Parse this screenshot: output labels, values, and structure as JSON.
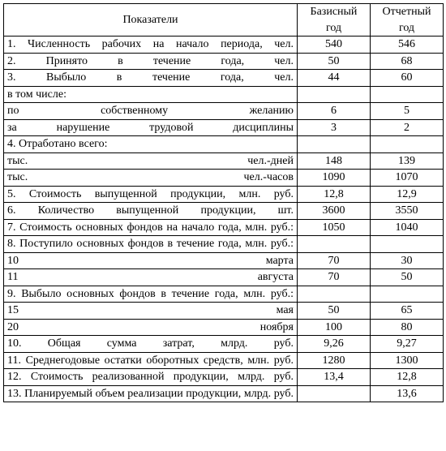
{
  "columns": {
    "indicator": "Показатели",
    "base_top": "Базисный",
    "base_bot": "год",
    "report_top": "Отчетный",
    "report_bot": "год"
  },
  "rows": [
    {
      "label": "1. Численность рабочих на начало периода, чел.",
      "base": "540",
      "report": "546"
    },
    {
      "label": "2. Принято в течение года, чел.",
      "base": "50",
      "report": "68"
    },
    {
      "label": "3. Выбыло в течение года, чел.",
      "base": "44",
      "report": "60"
    },
    {
      "label": "в том числе:",
      "base": "",
      "report": "",
      "nopad": true
    },
    {
      "label": "по собственному желанию",
      "base": "6",
      "report": "5"
    },
    {
      "label": "за нарушение трудовой дисциплины",
      "base": "3",
      "report": "2"
    },
    {
      "label": "4. Отработано всего:",
      "base": "",
      "report": "",
      "nopad": true
    },
    {
      "label": "тыс. чел.-дней",
      "base": "148",
      "report": "139"
    },
    {
      "label": "тыс. чел.-часов",
      "base": "1090",
      "report": "1070"
    },
    {
      "label": "5. Стоимость выпущенной продукции, млн. руб.",
      "base": "12,8",
      "report": "12,9"
    },
    {
      "label": "6. Количество выпущенной продукции, шт.",
      "base": "3600",
      "report": "3550"
    },
    {
      "label": "7. Стоимость основных фондов на начало года, млн. руб.:",
      "base": "1050",
      "report": "1040"
    },
    {
      "label": "8. Поступило основных фондов в течение года, млн. руб.:",
      "base": "",
      "report": ""
    },
    {
      "label": "10 марта",
      "base": "70",
      "report": "30"
    },
    {
      "label": "11 августа",
      "base": "70",
      "report": "50"
    },
    {
      "label": "9. Выбыло основных фондов в течение года, млн. руб.:",
      "base": "",
      "report": ""
    },
    {
      "label": "15 мая",
      "base": "50",
      "report": "65"
    },
    {
      "label": "20 ноября",
      "base": "100",
      "report": "80"
    },
    {
      "label": "10. Общая сумма затрат, млрд. руб.",
      "base": "9,26",
      "report": "9,27"
    },
    {
      "label": "11. Среднегодовые остатки оборотных средств, млн. руб.",
      "base": "1280",
      "report": "1300"
    },
    {
      "label": "12. Стоимость реализованной продукции, млрд. руб.",
      "base": "13,4",
      "report": "12,8"
    },
    {
      "label": "13. Планируемый объем реализации продукции, млрд. руб.",
      "base": "",
      "report": "13,6"
    }
  ]
}
